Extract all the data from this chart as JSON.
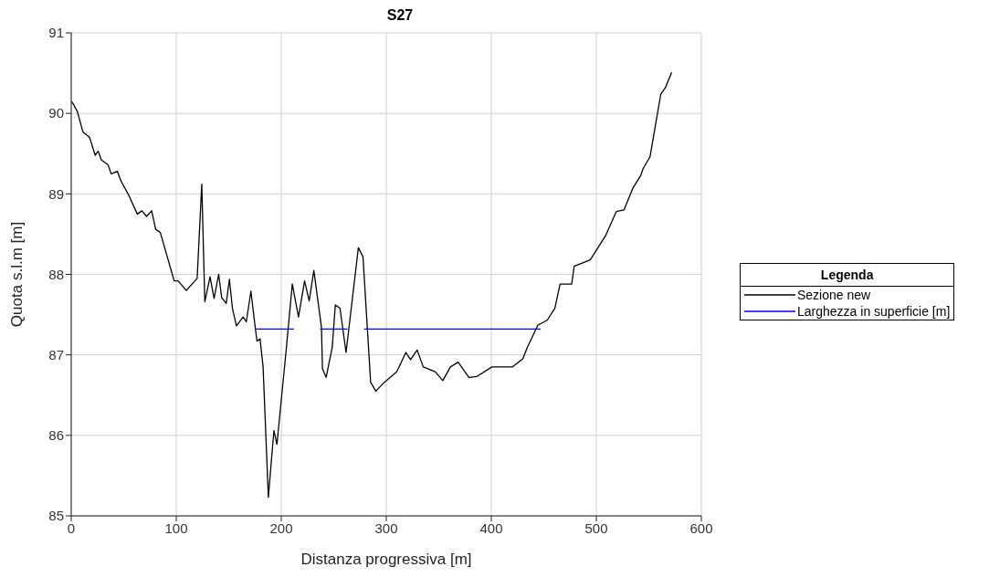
{
  "chart_data": {
    "type": "line",
    "title": "S27",
    "xlabel": "Distanza progressiva [m]",
    "ylabel": "Quota s.l.m [m]",
    "legend_title": "Legenda",
    "legend": "right",
    "grid": true,
    "marker": "none",
    "line_style": "solid",
    "xlim": [
      0,
      600
    ],
    "xticks": [
      0,
      100,
      200,
      300,
      400,
      500,
      600
    ],
    "ylim": [
      85,
      91
    ],
    "yticks": [
      85,
      86,
      87,
      88,
      89,
      90,
      91
    ],
    "series": [
      {
        "name": "Sezione new",
        "color": "#000000",
        "x": [
          0,
          2.3,
          5.9,
          11.1,
          17.5,
          22.8,
          25.7,
          28.7,
          35.1,
          38,
          43.9,
          47.4,
          54.1,
          62.9,
          67.3,
          71.7,
          76.6,
          80.4,
          84.8,
          98,
          101.8,
          109.6,
          119.9,
          124.3,
          127.2,
          132.2,
          136,
          140.4,
          143.3,
          147.6,
          150.6,
          153.5,
          157.3,
          163.7,
          166.7,
          171.1,
          175.4,
          176.9,
          179.8,
          182.7,
          187.7,
          193,
          195.9,
          204.6,
          210.5,
          216.4,
          222.2,
          226.6,
          231,
          238.3,
          239.2,
          242.7,
          248.5,
          251.5,
          255.9,
          261.7,
          273.4,
          277.8,
          285.1,
          290,
          298.2,
          309.9,
          318.7,
          323.1,
          329.4,
          335.2,
          346.5,
          353.8,
          361.1,
          368.4,
          378.7,
          386,
          400.6,
          420,
          430,
          434.2,
          444.4,
          453.2,
          460.5,
          465.5,
          476.6,
          478.9,
          494.2,
          508.8,
          519,
          526.3,
          535.1,
          542.4,
          544.4,
          551.1,
          555.5,
          561.4,
          565.8,
          571.7
        ],
        "values": [
          90.15,
          90.11,
          90.02,
          89.77,
          89.7,
          89.48,
          89.53,
          89.42,
          89.36,
          89.25,
          89.28,
          89.16,
          89,
          88.75,
          88.79,
          88.72,
          88.79,
          88.56,
          88.52,
          87.92,
          87.92,
          87.8,
          87.95,
          89.12,
          87.66,
          87.97,
          87.7,
          88,
          87.71,
          87.64,
          87.94,
          87.58,
          87.36,
          87.47,
          87.41,
          87.79,
          87.32,
          87.17,
          87.2,
          86.85,
          85.23,
          86.06,
          85.89,
          87.05,
          87.88,
          87.47,
          87.92,
          87.67,
          88.05,
          87.34,
          86.83,
          86.72,
          87.09,
          87.62,
          87.58,
          87.03,
          88.33,
          88.22,
          86.66,
          86.55,
          86.66,
          86.79,
          87.03,
          86.94,
          87.06,
          86.85,
          86.79,
          86.68,
          86.85,
          86.91,
          86.72,
          86.73,
          86.85,
          86.85,
          86.95,
          87.09,
          87.37,
          87.43,
          87.58,
          87.88,
          87.88,
          88.1,
          88.18,
          88.48,
          88.78,
          88.8,
          89.08,
          89.23,
          89.31,
          89.46,
          89.79,
          90.24,
          90.32,
          90.51
        ]
      },
      {
        "name": "Larghezza in superficie [m]",
        "color": "#0000ff",
        "x": [
          175,
          212,
          225,
          237,
          263,
          271,
          279,
          447
        ],
        "values": [
          87.32,
          87.32,
          null,
          87.32,
          87.32,
          null,
          87.32,
          87.32
        ]
      }
    ]
  }
}
